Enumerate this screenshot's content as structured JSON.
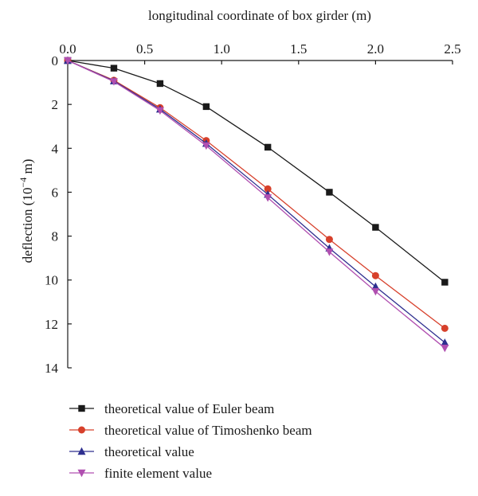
{
  "chart_data": {
    "type": "line",
    "xlabel": "longitudinal coordinate of box girder (m)",
    "ylabel_prefix": "deflection (10",
    "ylabel_exp": "−4",
    "ylabel_suffix": " m)",
    "xlim": [
      0,
      2.5
    ],
    "ylim": [
      0,
      14
    ],
    "y_inverted": true,
    "x_axis_position": "top",
    "x_ticks": [
      0.0,
      0.5,
      1.0,
      1.5,
      2.0,
      2.5
    ],
    "x_tick_labels": [
      "0.0",
      "0.5",
      "1.0",
      "1.5",
      "2.0",
      "2.5"
    ],
    "y_ticks": [
      0,
      2,
      4,
      6,
      8,
      10,
      12,
      14
    ],
    "y_tick_labels": [
      "0",
      "2",
      "4",
      "6",
      "8",
      "10",
      "12",
      "14"
    ],
    "grid": false,
    "legend_position": "bottom",
    "series": [
      {
        "name": "theoretical value of Euler beam",
        "color": "#1a1a1a",
        "marker": "square",
        "x": [
          0.0,
          0.3,
          0.6,
          0.9,
          1.3,
          1.7,
          2.0,
          2.45
        ],
        "values": [
          0.0,
          0.35,
          1.05,
          2.1,
          3.95,
          6.0,
          7.6,
          10.1
        ]
      },
      {
        "name": "theoretical value of Timoshenko beam",
        "color": "#d7402b",
        "marker": "circle",
        "x": [
          0.0,
          0.3,
          0.6,
          0.9,
          1.3,
          1.7,
          2.0,
          2.45
        ],
        "values": [
          0.0,
          0.9,
          2.15,
          3.65,
          5.85,
          8.15,
          9.8,
          12.2
        ]
      },
      {
        "name": "theoretical value",
        "color": "#2e2f8f",
        "marker": "triangle-up",
        "x": [
          0.0,
          0.3,
          0.6,
          0.9,
          1.3,
          1.7,
          2.0,
          2.45
        ],
        "values": [
          0.0,
          0.93,
          2.22,
          3.78,
          6.1,
          8.55,
          10.3,
          12.85
        ]
      },
      {
        "name": "finite element value",
        "color": "#b04fb0",
        "marker": "triangle-down",
        "x": [
          0.0,
          0.3,
          0.6,
          0.9,
          1.3,
          1.7,
          2.0,
          2.45
        ],
        "values": [
          0.0,
          0.96,
          2.28,
          3.88,
          6.25,
          8.72,
          10.52,
          13.1
        ]
      }
    ]
  }
}
